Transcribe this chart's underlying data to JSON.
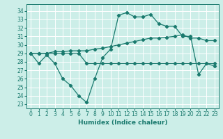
{
  "xlabel": "Humidex (Indice chaleur)",
  "bg_color": "#cceee8",
  "grid_color": "#ffffff",
  "line_color": "#1a7a6e",
  "xlim": [
    -0.5,
    23.5
  ],
  "ylim": [
    22.5,
    34.8
  ],
  "yticks": [
    23,
    24,
    25,
    26,
    27,
    28,
    29,
    30,
    31,
    32,
    33,
    34
  ],
  "xticks": [
    0,
    1,
    2,
    3,
    4,
    5,
    6,
    7,
    8,
    9,
    10,
    11,
    12,
    13,
    14,
    15,
    16,
    17,
    18,
    19,
    20,
    21,
    22,
    23
  ],
  "line1_x": [
    0,
    1,
    2,
    3,
    4,
    5,
    6,
    7,
    8,
    9,
    10,
    11,
    12,
    13,
    14,
    15,
    16,
    17,
    18,
    19,
    20,
    21,
    22,
    23
  ],
  "line1_y": [
    29.0,
    27.8,
    28.8,
    27.8,
    26.0,
    25.2,
    24.0,
    23.2,
    26.0,
    28.5,
    29.5,
    33.5,
    33.8,
    33.3,
    33.3,
    33.6,
    32.5,
    32.2,
    32.2,
    31.0,
    31.0,
    26.5,
    27.8,
    27.5
  ],
  "line2_x": [
    0,
    1,
    2,
    3,
    4,
    5,
    6,
    7,
    8,
    9,
    10,
    11,
    12,
    13,
    14,
    15,
    16,
    17,
    18,
    19,
    20,
    21,
    22,
    23
  ],
  "line2_y": [
    29.0,
    29.0,
    29.0,
    29.2,
    29.2,
    29.3,
    29.3,
    29.3,
    29.5,
    29.6,
    29.8,
    30.0,
    30.2,
    30.4,
    30.6,
    30.8,
    30.8,
    30.9,
    31.0,
    31.2,
    30.8,
    30.8,
    30.5,
    30.5
  ],
  "line3_x": [
    0,
    1,
    2,
    3,
    4,
    5,
    6,
    7,
    8,
    9,
    10,
    11,
    12,
    13,
    14,
    15,
    16,
    17,
    18,
    19,
    20,
    21,
    22,
    23
  ],
  "line3_y": [
    29.0,
    29.0,
    29.0,
    29.0,
    29.0,
    29.0,
    29.0,
    27.8,
    27.8,
    27.8,
    27.8,
    27.8,
    27.8,
    27.8,
    27.8,
    27.8,
    27.8,
    27.8,
    27.8,
    27.8,
    27.8,
    27.8,
    27.8,
    27.8
  ]
}
